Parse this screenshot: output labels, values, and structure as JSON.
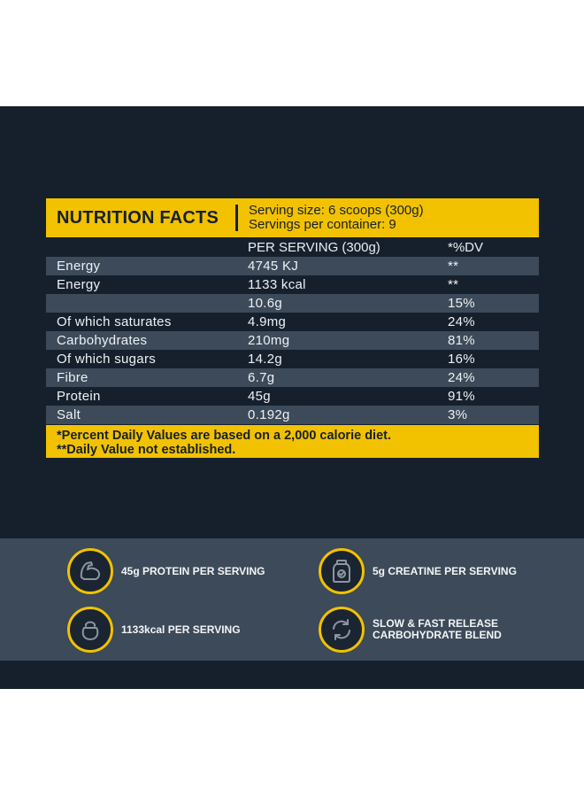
{
  "nutrition": {
    "title": "NUTRITION FACTS",
    "serving_size": "Serving size: 6 scoops (300g)",
    "servings_per_container": "Servings per container: 9",
    "columns": {
      "nutrient": "",
      "per_serving": "PER SERVING (300g)",
      "dv": "*%DV"
    },
    "rows": [
      {
        "nutrient": "Energy",
        "amount": "4745 KJ",
        "dv": "**"
      },
      {
        "nutrient": "Energy",
        "amount": "1133 kcal",
        "dv": "**"
      },
      {
        "nutrient": "",
        "amount": "10.6g",
        "dv": "15%"
      },
      {
        "nutrient": "Of which saturates",
        "amount": "4.9mg",
        "dv": "24%"
      },
      {
        "nutrient": "Carbohydrates",
        "amount": "210mg",
        "dv": "81%"
      },
      {
        "nutrient": "Of which sugars",
        "amount": "14.2g",
        "dv": "16%"
      },
      {
        "nutrient": "Fibre",
        "amount": "6.7g",
        "dv": "24%"
      },
      {
        "nutrient": "Protein",
        "amount": "45g",
        "dv": "91%"
      },
      {
        "nutrient": "Salt",
        "amount": "0.192g",
        "dv": "3%"
      }
    ],
    "footer_line1": "*Percent Daily Values are based on a 2,000 calorie diet.",
    "footer_line2": "**Daily Value not established."
  },
  "features": [
    {
      "icon": "flexed-arm-icon",
      "line1": "45g PROTEIN PER SERVING",
      "line2": ""
    },
    {
      "icon": "supplement-jar-icon",
      "line1": "5g CREATINE PER SERVING",
      "line2": ""
    },
    {
      "icon": "kettlebell-icon",
      "line1": "1133kcal PER SERVING",
      "line2": ""
    },
    {
      "icon": "refresh-arrows-icon",
      "line1": "SLOW & FAST RELEASE",
      "line2": "CARBOHYDRATE BLEND"
    }
  ],
  "colors": {
    "accent": "#f2c200",
    "panel": "#16202d",
    "band": "#3c4a59"
  }
}
